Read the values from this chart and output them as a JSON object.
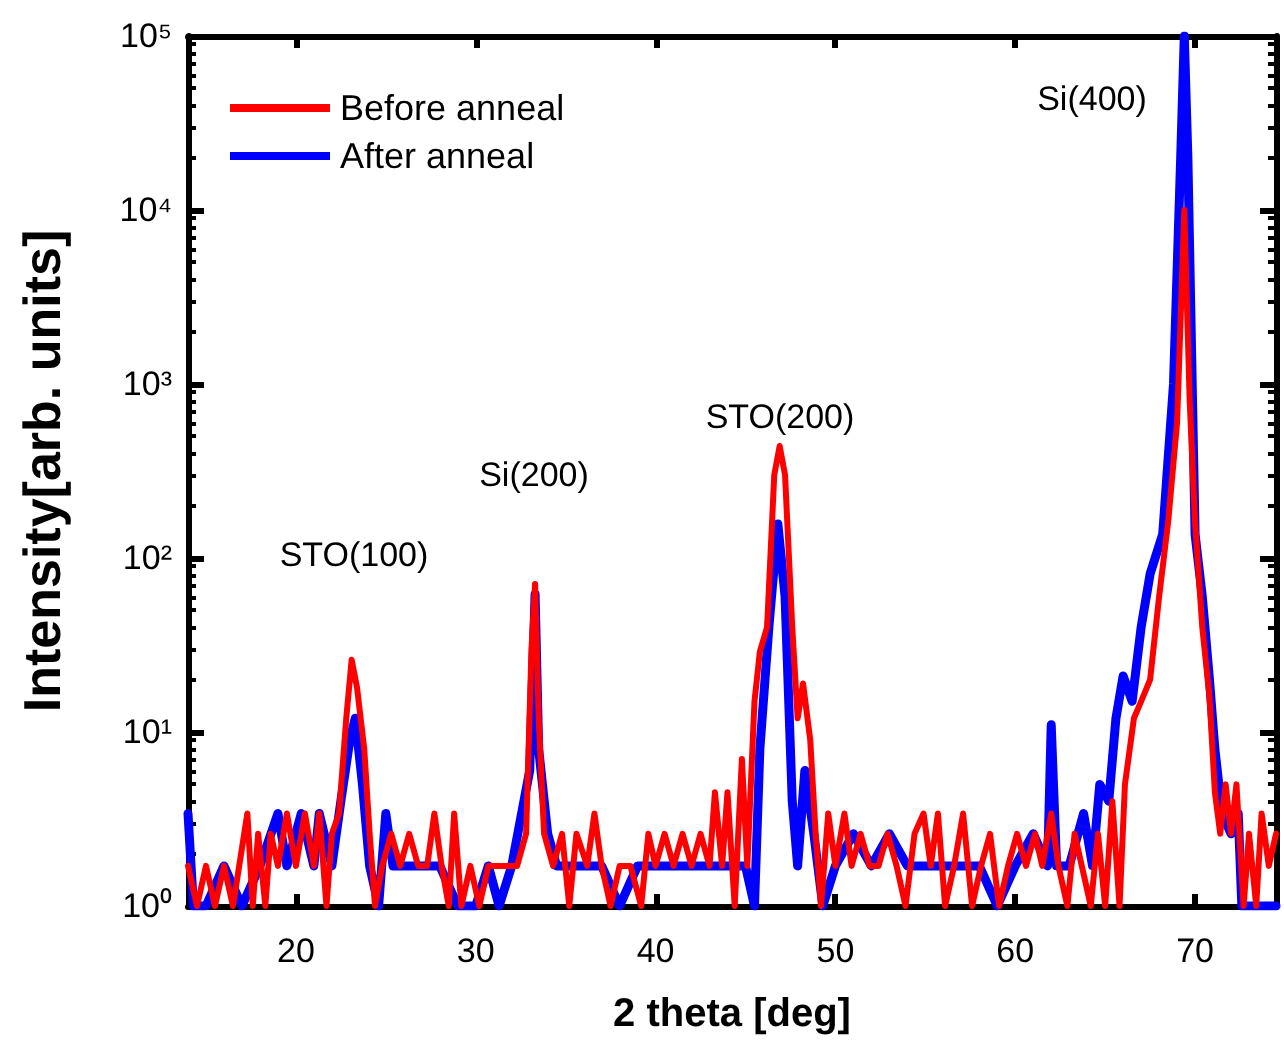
{
  "chart_data": {
    "type": "line",
    "xlabel": "2 theta [deg]",
    "ylabel": "Intensity[arb. units]",
    "log": "y",
    "legend": "top left",
    "grid": false,
    "marker": "none",
    "line_style": "solid",
    "xlim": [
      14,
      74.5
    ],
    "xticks": [
      20,
      30,
      40,
      50,
      60,
      70
    ],
    "ylim": [
      1,
      100000
    ],
    "yticks": [
      {
        "value": 1,
        "label": "10⁰"
      },
      {
        "value": 10,
        "label": "10¹"
      },
      {
        "value": 100,
        "label": "10²"
      },
      {
        "value": 1000,
        "label": "10³"
      },
      {
        "value": 10000,
        "label": "10⁴"
      },
      {
        "value": 100000,
        "label": "10⁵"
      }
    ],
    "annotations": [
      "STO(100)",
      "Si(200)",
      "STO(200)",
      "Si(400)"
    ],
    "series": [
      {
        "name": "Before anneal",
        "color": "#ff0000",
        "x": [
          14,
          14.5,
          15,
          15.5,
          16,
          16.5,
          17.3,
          17.6,
          17.9,
          18.3,
          18.6,
          19,
          19.5,
          20,
          20.5,
          21,
          21.3,
          21.7,
          22,
          22.4,
          22.8,
          23.1,
          23.4,
          23.8,
          24.1,
          24.4,
          24.8,
          25.3,
          25.8,
          26.3,
          26.8,
          27.3,
          27.7,
          28.1,
          28.5,
          28.8,
          29.2,
          29.7,
          30.2,
          30.7,
          31.2,
          31.8,
          32.3,
          32.8,
          33.1,
          33.3,
          33.5,
          33.8,
          34.3,
          34.8,
          35.2,
          35.6,
          36.2,
          36.6,
          37,
          37.5,
          38,
          38.6,
          39.2,
          39.6,
          40,
          40.5,
          41,
          41.5,
          42,
          42.5,
          43,
          43.3,
          43.7,
          44,
          44.4,
          44.8,
          45.1,
          45.5,
          45.8,
          46.2,
          46.6,
          46.9,
          47.2,
          47.6,
          47.9,
          48.2,
          48.6,
          48.9,
          49.2,
          49.6,
          50,
          50.5,
          50.9,
          51.4,
          51.9,
          52.4,
          52.9,
          53.4,
          53.9,
          54.4,
          54.9,
          55.3,
          55.7,
          56.1,
          56.6,
          57.1,
          57.6,
          58.1,
          58.6,
          59.1,
          59.6,
          60.1,
          60.6,
          61.1,
          61.5,
          62,
          62.4,
          62.9,
          63.3,
          63.7,
          64.2,
          64.6,
          65,
          65.4,
          65.8,
          66.1,
          66.6,
          67,
          67.5,
          68,
          68.5,
          69,
          69.4,
          69.7,
          70,
          70.4,
          70.8,
          71.1,
          71.4,
          71.7,
          72,
          72.3,
          72.7,
          73,
          73.4,
          73.7,
          74.1,
          74.5
        ],
        "values": [
          1.7,
          1,
          1.7,
          1,
          1.7,
          1,
          3.4,
          1,
          2.6,
          1,
          2.6,
          1.7,
          3.4,
          1.7,
          3.4,
          1.7,
          3.4,
          1,
          2.6,
          3.4,
          12,
          26,
          18,
          8,
          2.6,
          1,
          1.7,
          2.6,
          1.7,
          2.6,
          1.7,
          1.7,
          3.4,
          1.7,
          1,
          3.4,
          1,
          1.7,
          1,
          1.7,
          1.7,
          1.7,
          1.7,
          2.6,
          30,
          71,
          12,
          2.6,
          1.7,
          2.6,
          1,
          2.6,
          1.7,
          3.4,
          1.7,
          1,
          1.7,
          1.7,
          1,
          2.6,
          1.7,
          2.6,
          1.7,
          2.6,
          1.7,
          2.6,
          1.7,
          4.5,
          1.7,
          4.5,
          1,
          7,
          1.7,
          15,
          29,
          40,
          300,
          440,
          300,
          40,
          12,
          19,
          9,
          2.6,
          1,
          3.4,
          1.7,
          3.4,
          1.7,
          2.6,
          1.7,
          1.7,
          2.6,
          1.7,
          1,
          2.6,
          3.4,
          1.7,
          3.4,
          1,
          1.7,
          3.4,
          1,
          1.7,
          2.6,
          1,
          1.7,
          2.6,
          1.7,
          2.6,
          1.7,
          3.4,
          1.7,
          1,
          2.6,
          1.7,
          1,
          2.6,
          1,
          4,
          1,
          5,
          12,
          15,
          20,
          60,
          160,
          600,
          10000,
          800,
          160,
          40,
          16,
          4.5,
          2.6,
          5,
          2.6,
          5,
          1,
          2.6,
          1,
          3.4,
          1.7,
          2.6
        ]
      },
      {
        "name": "After anneal",
        "color": "#0000ff",
        "x": [
          14,
          14.3,
          15,
          16,
          17,
          18,
          19,
          19.5,
          20.3,
          21,
          21.3,
          22,
          22.5,
          23,
          23.3,
          23.7,
          24.1,
          24.6,
          25,
          25.4,
          26,
          27,
          28,
          29,
          30,
          30.7,
          31.3,
          32,
          33,
          33.3,
          33.5,
          34,
          34.5,
          35.5,
          37,
          38,
          39,
          40,
          42,
          43,
          44,
          45,
          45.5,
          45.8,
          46.3,
          46.8,
          47.2,
          47.6,
          47.9,
          48.3,
          48.8,
          49.3,
          50,
          51,
          52,
          53,
          54,
          55,
          56,
          57,
          58,
          59,
          60,
          61,
          61.8,
          62,
          62.3,
          63,
          63.8,
          64.3,
          64.7,
          65.2,
          65.6,
          66,
          66.5,
          67,
          67.5,
          68.2,
          68.8,
          69.2,
          69.4,
          69.6,
          70,
          70.4,
          70.8,
          71.1,
          71.5,
          72,
          72.4,
          72.6,
          73,
          74,
          74.5
        ],
        "values": [
          3.4,
          1,
          1,
          1.7,
          1,
          1.7,
          3.4,
          1.7,
          3.4,
          1.7,
          3.4,
          1.7,
          4,
          9,
          12,
          5,
          1.7,
          1,
          3.4,
          1.7,
          1.7,
          1.7,
          1.7,
          1,
          1,
          1.7,
          1,
          1.7,
          6,
          62,
          8,
          2.6,
          1.7,
          1.7,
          1.7,
          1,
          1.7,
          1.7,
          1.7,
          1.7,
          1.7,
          1.7,
          1,
          8,
          40,
          157,
          60,
          4,
          1.7,
          6,
          2.6,
          1,
          1.7,
          2.6,
          1.7,
          2.6,
          1.7,
          1.7,
          1.7,
          1.7,
          1.7,
          1,
          1.7,
          2.6,
          1.7,
          11,
          1.7,
          1.7,
          3.4,
          1.7,
          5,
          4,
          12,
          21,
          15,
          40,
          81,
          137,
          1000,
          20000,
          100000,
          20000,
          137,
          60,
          20,
          8,
          3.4,
          2.6,
          3.4,
          1,
          1,
          1,
          1
        ]
      }
    ]
  }
}
